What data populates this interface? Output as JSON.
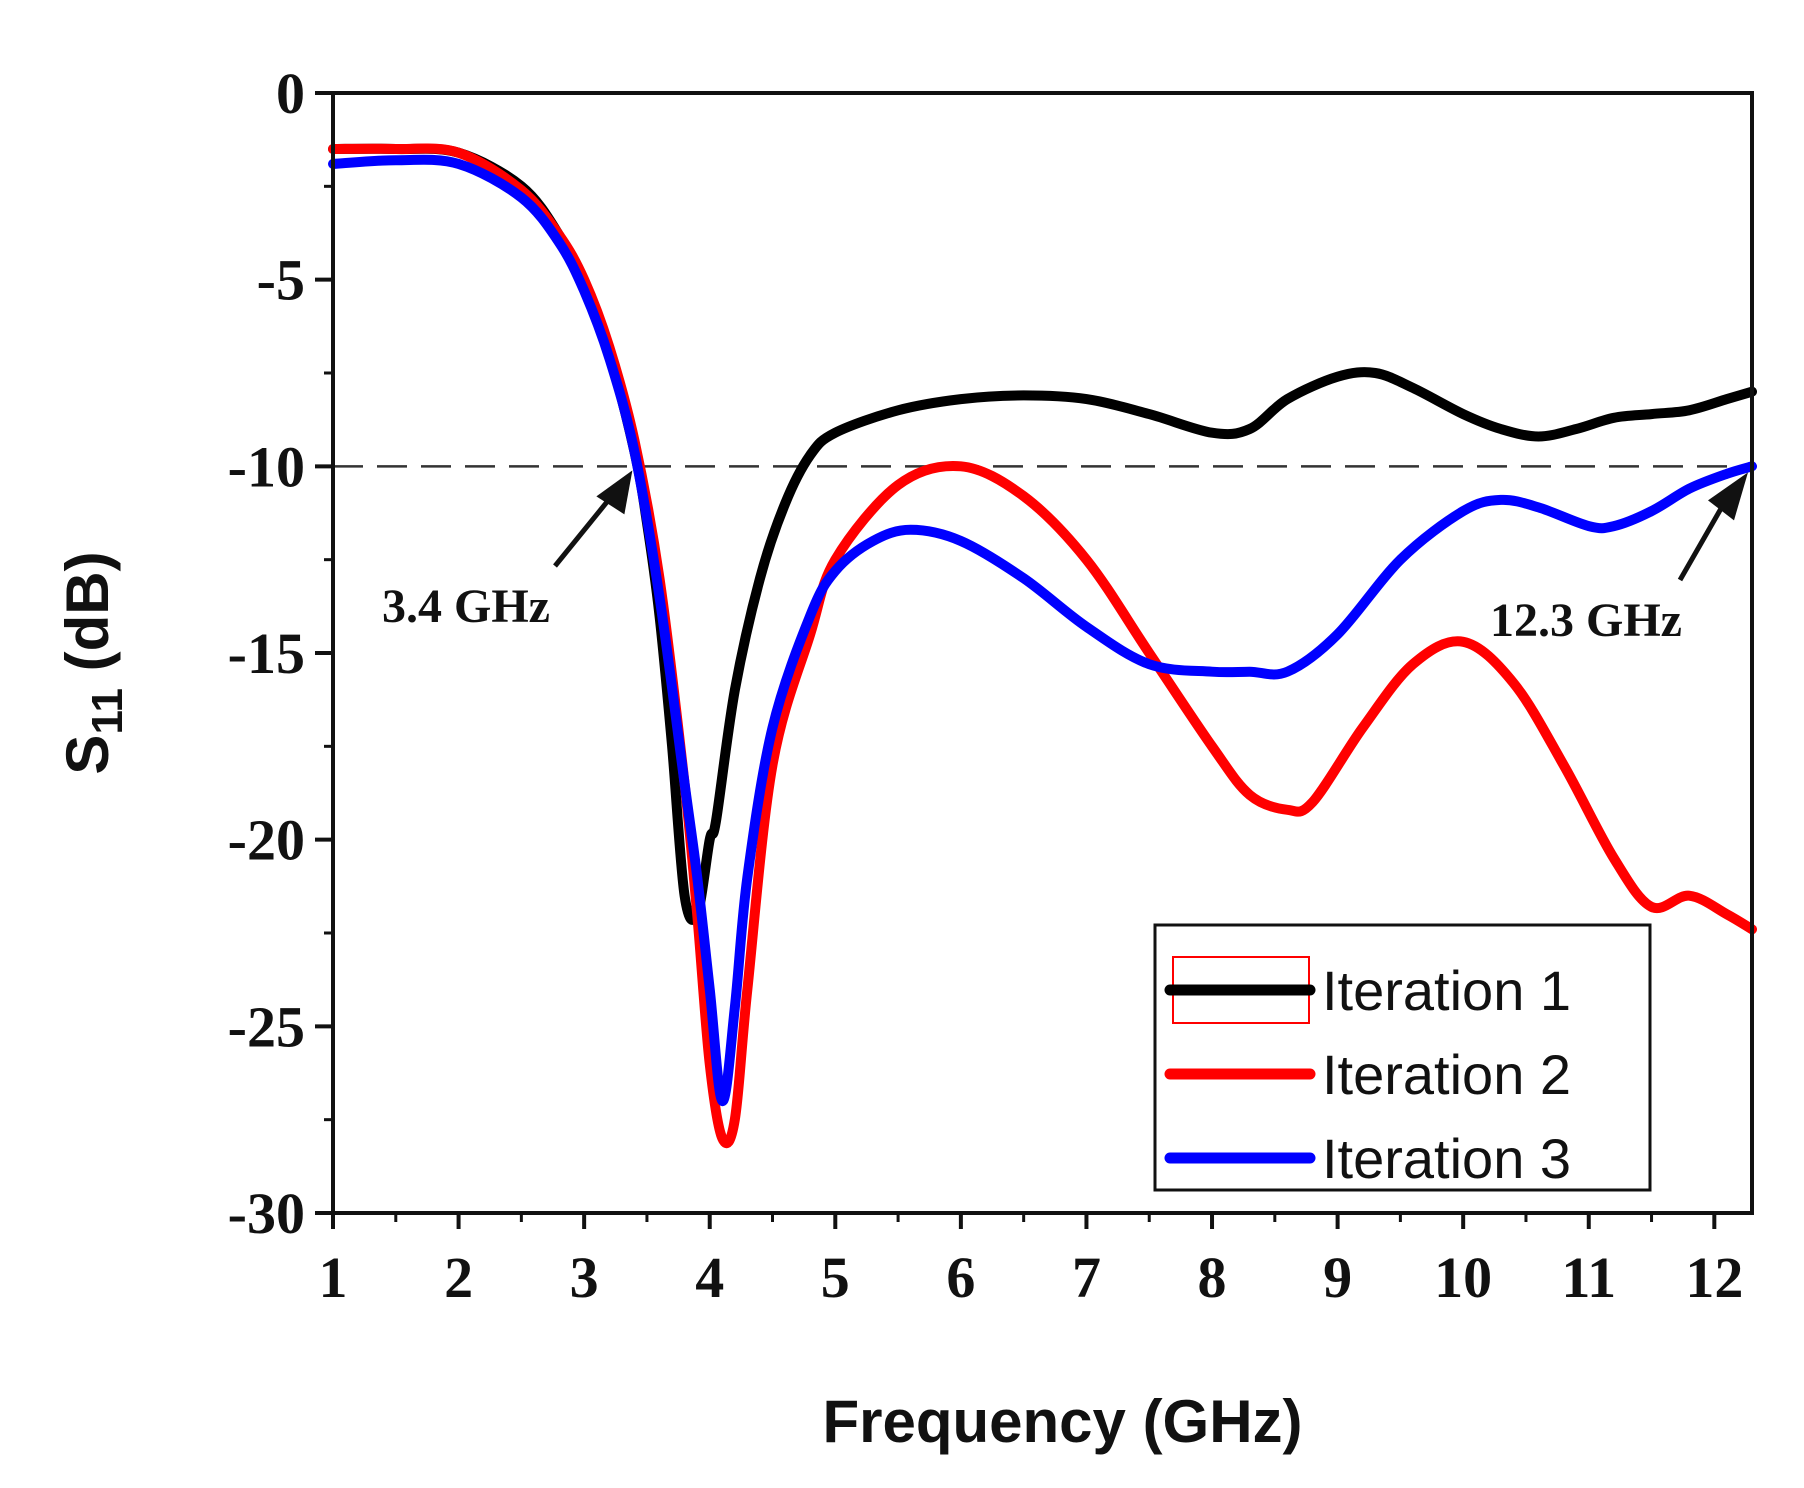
{
  "chart_data": {
    "type": "line",
    "title": "",
    "xlabel": "Frequency (GHz)",
    "ylabel_main": "S",
    "ylabel_sub": "11",
    "ylabel_unit": " (dB)",
    "xlim": [
      1,
      12.3
    ],
    "ylim": [
      -30,
      0
    ],
    "xticks": [
      1,
      2,
      3,
      4,
      5,
      6,
      7,
      8,
      9,
      10,
      11,
      12
    ],
    "yticks": [
      0,
      -5,
      -10,
      -15,
      -20,
      -25,
      -30
    ],
    "reference_line": {
      "y": -10,
      "style": "dashed"
    },
    "annotations": [
      {
        "text": "3.4 GHz",
        "x": 3.4,
        "y": -10
      },
      {
        "text": "12.3 GHz",
        "x": 12.3,
        "y": -10
      }
    ],
    "legend_position": "bottom-right",
    "series": [
      {
        "name": "Iteration 1",
        "color": "#000000",
        "x": [
          1.0,
          1.5,
          2.0,
          2.5,
          2.8,
          3.0,
          3.2,
          3.4,
          3.5,
          3.6,
          3.7,
          3.8,
          3.9,
          4.0,
          4.05,
          4.2,
          4.4,
          4.6,
          4.8,
          5.0,
          5.5,
          6.0,
          6.5,
          7.0,
          7.5,
          8.0,
          8.3,
          8.6,
          9.0,
          9.3,
          9.6,
          10.0,
          10.3,
          10.6,
          10.9,
          11.2,
          11.5,
          11.8,
          12.1,
          12.3
        ],
        "y": [
          -1.5,
          -1.5,
          -1.6,
          -2.5,
          -3.8,
          -5.2,
          -7.0,
          -9.6,
          -11.5,
          -14.0,
          -17.5,
          -21.5,
          -22.0,
          -20.0,
          -19.5,
          -16.0,
          -13.0,
          -11.0,
          -9.7,
          -9.1,
          -8.5,
          -8.2,
          -8.1,
          -8.2,
          -8.6,
          -9.1,
          -9.0,
          -8.2,
          -7.6,
          -7.5,
          -7.9,
          -8.6,
          -9.0,
          -9.2,
          -9.0,
          -8.7,
          -8.6,
          -8.5,
          -8.2,
          -8.0
        ]
      },
      {
        "name": "Iteration 2",
        "color": "#ff0000",
        "x": [
          1.0,
          1.5,
          2.0,
          2.5,
          2.8,
          3.0,
          3.2,
          3.4,
          3.6,
          3.8,
          3.9,
          4.0,
          4.1,
          4.2,
          4.3,
          4.5,
          4.8,
          5.0,
          5.5,
          6.0,
          6.5,
          7.0,
          7.5,
          8.0,
          8.3,
          8.6,
          8.8,
          9.2,
          9.6,
          10.0,
          10.4,
          10.8,
          11.2,
          11.5,
          11.8,
          12.1,
          12.3
        ],
        "y": [
          -1.5,
          -1.5,
          -1.6,
          -2.6,
          -3.8,
          -5.0,
          -6.8,
          -9.3,
          -13.0,
          -18.5,
          -22.0,
          -26.0,
          -28.0,
          -27.5,
          -24.0,
          -18.0,
          -14.5,
          -12.5,
          -10.5,
          -10.0,
          -10.8,
          -12.5,
          -15.0,
          -17.5,
          -18.8,
          -19.2,
          -19.0,
          -17.0,
          -15.3,
          -14.7,
          -15.8,
          -18.0,
          -20.5,
          -21.8,
          -21.5,
          -22.0,
          -22.4
        ]
      },
      {
        "name": "Iteration 3",
        "color": "#0000ff",
        "x": [
          1.0,
          1.5,
          2.0,
          2.5,
          2.8,
          3.0,
          3.2,
          3.4,
          3.6,
          3.8,
          3.9,
          4.0,
          4.1,
          4.2,
          4.3,
          4.5,
          4.8,
          5.0,
          5.3,
          5.6,
          6.0,
          6.5,
          7.0,
          7.5,
          8.0,
          8.3,
          8.6,
          9.0,
          9.5,
          10.0,
          10.3,
          10.6,
          11.0,
          11.2,
          11.5,
          11.8,
          12.1,
          12.3
        ],
        "y": [
          -1.9,
          -1.8,
          -1.9,
          -2.8,
          -4.0,
          -5.3,
          -7.1,
          -9.6,
          -13.5,
          -18.5,
          -21.0,
          -24.0,
          -27.0,
          -24.5,
          -21.0,
          -17.0,
          -14.0,
          -12.8,
          -12.0,
          -11.7,
          -12.0,
          -13.0,
          -14.3,
          -15.3,
          -15.5,
          -15.5,
          -15.5,
          -14.5,
          -12.5,
          -11.2,
          -10.9,
          -11.1,
          -11.6,
          -11.6,
          -11.2,
          -10.6,
          -10.2,
          -10.0
        ]
      }
    ]
  }
}
